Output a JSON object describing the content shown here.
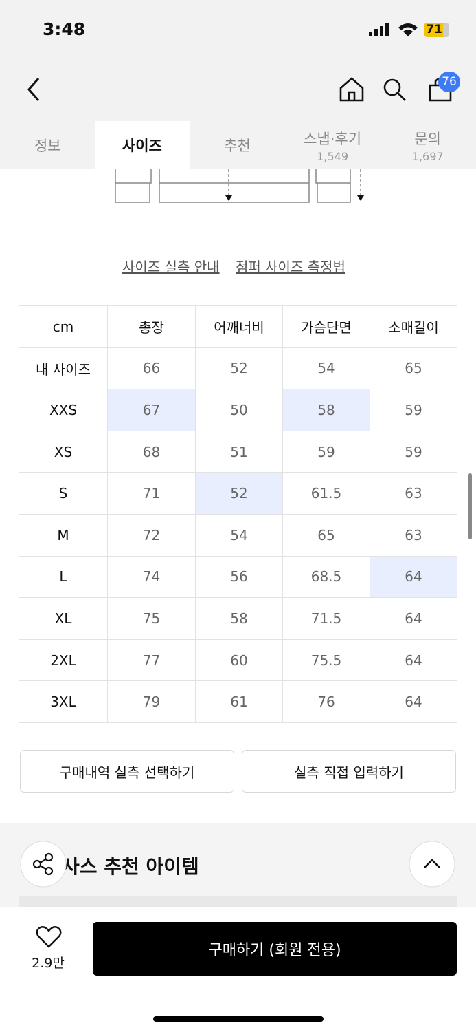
{
  "status_bar": {
    "time": "3:48",
    "battery": "71"
  },
  "header": {
    "cart_count": "76"
  },
  "tabs": [
    {
      "label": "정보"
    },
    {
      "label": "사이즈",
      "active": true
    },
    {
      "label": "추천"
    },
    {
      "label": "스냅·후기",
      "count": "1,549"
    },
    {
      "label": "문의",
      "count": "1,697"
    }
  ],
  "links": [
    "사이즈 실측 안내",
    "점퍼 사이즈 측정법"
  ],
  "table": {
    "header": [
      "cm",
      "총장",
      "어깨너비",
      "가슴단면",
      "소매길이"
    ],
    "rows": [
      [
        "내 사이즈",
        "66",
        "52",
        "54",
        "65"
      ],
      [
        "XXS",
        {
          "text": "67",
          "highlight": true
        },
        "50",
        {
          "text": "58",
          "highlight": true
        },
        "59"
      ],
      [
        "XS",
        "68",
        "51",
        "59",
        "59"
      ],
      [
        "S",
        "71",
        {
          "text": "52",
          "highlight": true
        },
        "61.5",
        "63"
      ],
      [
        "M",
        "72",
        "54",
        "65",
        "63"
      ],
      [
        "L",
        "74",
        "56",
        "68.5",
        {
          "text": "64",
          "highlight": true
        }
      ],
      [
        "XL",
        "75",
        "58",
        "71.5",
        "64"
      ],
      [
        "2XL",
        "77",
        "60",
        "75.5",
        "64"
      ],
      [
        "3XL",
        "79",
        "61",
        "76",
        "64"
      ]
    ]
  },
  "buttons": [
    "구매내역 실측 선택하기",
    "실측 직접 입력하기"
  ],
  "section_title": "사스 추천 아이템",
  "bottom_bar": {
    "likes": "2.9만",
    "buy": "구매하기 (회원 전용)"
  }
}
